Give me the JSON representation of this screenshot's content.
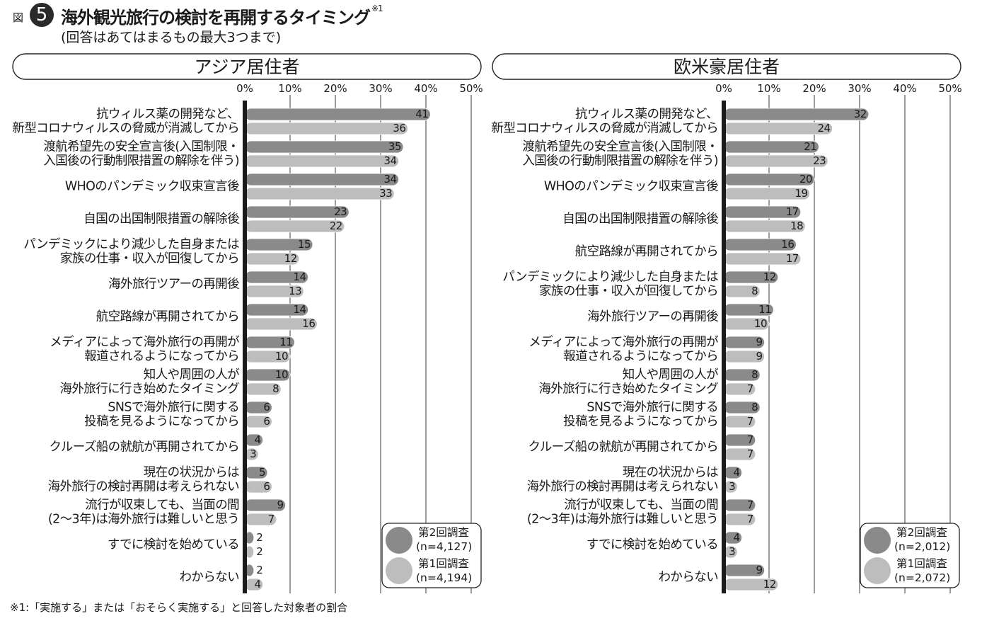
{
  "figure": {
    "prefix": "図",
    "number": "5",
    "title": "海外観光旅行の検討を再開するタイミング",
    "title_note": "※1",
    "subtitle": "(回答はあてはまるもの最大3つまで)",
    "footnote": "※1:「実施する」または「おそらく実施する」と回答した対象者の割合"
  },
  "colors": {
    "second_survey": "#8a8a8a",
    "first_survey": "#bdbdbd",
    "axis": "#1a1a1a",
    "grid": "#3a3a3a"
  },
  "chart_data": [
    {
      "type": "bar",
      "orientation": "horizontal",
      "title": "アジア居住者",
      "tick_labels": [
        "0%",
        "10%",
        "20%",
        "30%",
        "40%",
        "50%"
      ],
      "xlim": [
        0,
        50
      ],
      "grid": true,
      "legend_position": "bottom-right",
      "categories": [
        [
          "抗ウィルス薬の開発など、",
          "新型コロナウィルスの脅威が消滅してから"
        ],
        [
          "渡航希望先の安全宣言後(入国制限・",
          "入国後の行動制限措置の解除を伴う)"
        ],
        [
          "WHOのパンデミック収束宣言後"
        ],
        [
          "自国の出国制限措置の解除後"
        ],
        [
          "パンデミックにより減少した自身または",
          "家族の仕事・収入が回復してから"
        ],
        [
          "海外旅行ツアーの再開後"
        ],
        [
          "航空路線が再開されてから"
        ],
        [
          "メディアによって海外旅行の再開が",
          "報道されるようになってから"
        ],
        [
          "知人や周囲の人が",
          "海外旅行に行き始めたタイミング"
        ],
        [
          "SNSで海外旅行に関する",
          "投稿を見るようになってから"
        ],
        [
          "クルーズ船の就航が再開されてから"
        ],
        [
          "現在の状況からは",
          "海外旅行の検討再開は考えられない"
        ],
        [
          "流行が収束しても、当面の間",
          "(2〜3年)は海外旅行は難しいと思う"
        ],
        [
          "すでに検討を始めている"
        ],
        [
          "わからない"
        ]
      ],
      "series": [
        {
          "name": "第2回調査",
          "sample": "(n=4,127)",
          "values": [
            41,
            35,
            34,
            23,
            15,
            14,
            14,
            11,
            10,
            6,
            4,
            5,
            9,
            2,
            2
          ]
        },
        {
          "name": "第1回調査",
          "sample": "(n=4,194)",
          "values": [
            36,
            34,
            33,
            22,
            12,
            13,
            16,
            10,
            8,
            6,
            3,
            6,
            7,
            2,
            4
          ]
        }
      ]
    },
    {
      "type": "bar",
      "orientation": "horizontal",
      "title": "欧米豪居住者",
      "tick_labels": [
        "0%",
        "10%",
        "20%",
        "30%",
        "40%",
        "50%"
      ],
      "xlim": [
        0,
        50
      ],
      "grid": true,
      "legend_position": "bottom-right",
      "categories": [
        [
          "抗ウィルス薬の開発など、",
          "新型コロナウィルスの脅威が消滅してから"
        ],
        [
          "渡航希望先の安全宣言後(入国制限・",
          "入国後の行動制限措置の解除を伴う)"
        ],
        [
          "WHOのパンデミック収束宣言後"
        ],
        [
          "自国の出国制限措置の解除後"
        ],
        [
          "航空路線が再開されてから"
        ],
        [
          "パンデミックにより減少した自身または",
          "家族の仕事・収入が回復してから"
        ],
        [
          "海外旅行ツアーの再開後"
        ],
        [
          "メディアによって海外旅行の再開が",
          "報道されるようになってから"
        ],
        [
          "知人や周囲の人が",
          "海外旅行に行き始めたタイミング"
        ],
        [
          "SNSで海外旅行に関する",
          "投稿を見るようになってから"
        ],
        [
          "クルーズ船の就航が再開されてから"
        ],
        [
          "現在の状況からは",
          "海外旅行の検討再開は考えられない"
        ],
        [
          "流行が収束しても、当面の間",
          "(2〜3年)は海外旅行は難しいと思う"
        ],
        [
          "すでに検討を始めている"
        ],
        [
          "わからない"
        ]
      ],
      "series": [
        {
          "name": "第2回調査",
          "sample": "(n=2,012)",
          "values": [
            32,
            21,
            20,
            17,
            16,
            12,
            11,
            9,
            8,
            8,
            7,
            4,
            7,
            4,
            9
          ]
        },
        {
          "name": "第1回調査",
          "sample": "(n=2,072)",
          "values": [
            24,
            23,
            19,
            18,
            17,
            8,
            10,
            9,
            7,
            7,
            7,
            3,
            7,
            3,
            12
          ]
        }
      ]
    }
  ]
}
